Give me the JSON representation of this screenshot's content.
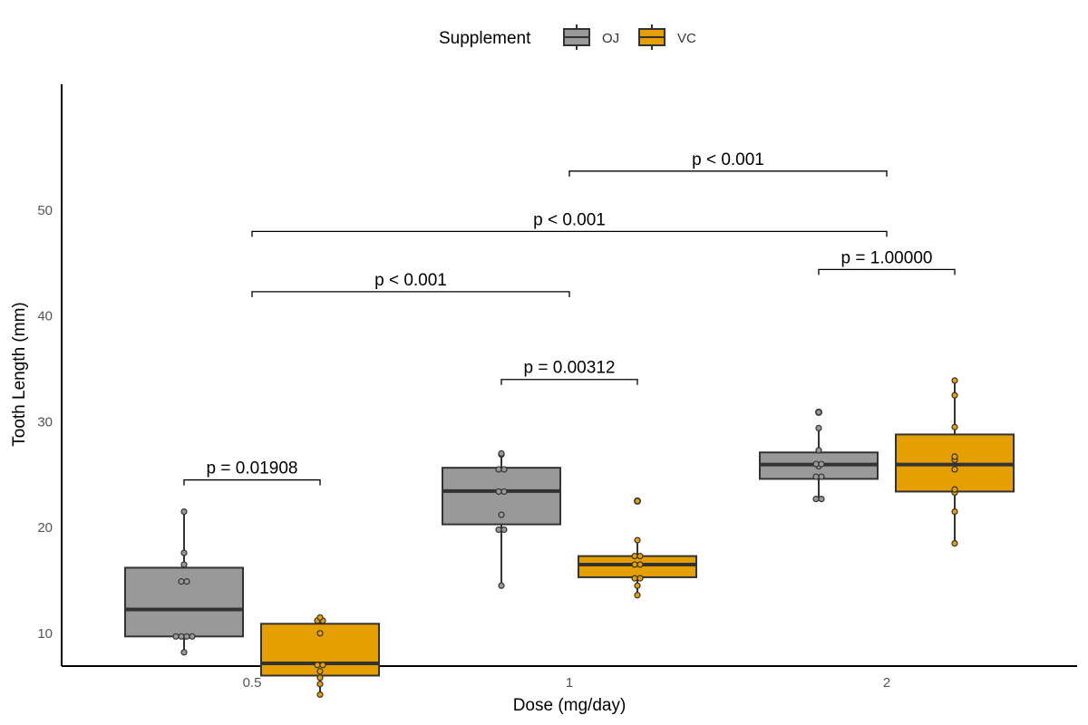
{
  "chart_data": {
    "type": "box",
    "xlabel": "Dose (mg/day)",
    "ylabel": "Tooth Length (mm)",
    "categories": [
      "0.5",
      "1",
      "2"
    ],
    "yticks": [
      10,
      20,
      30,
      40,
      50
    ],
    "ylim": [
      2,
      56
    ],
    "grid": false,
    "legend": {
      "title": "Supplement",
      "position": "top",
      "entries": [
        {
          "label": "OJ",
          "color": "#999999"
        },
        {
          "label": "VC",
          "color": "#E69F00"
        }
      ]
    },
    "series": [
      {
        "name": "OJ",
        "color": "#999999",
        "boxes": [
          {
            "category": "0.5",
            "min": 8.2,
            "q1": 9.7,
            "median": 12.25,
            "q3": 16.2,
            "max": 21.5,
            "outliers": [],
            "points": [
              8.2,
              9.7,
              9.7,
              9.7,
              9.7,
              14.9,
              14.9,
              16.5,
              17.6,
              21.5
            ]
          },
          {
            "category": "1",
            "min": 14.5,
            "q1": 20.3,
            "median": 23.45,
            "q3": 25.65,
            "max": 27.0,
            "outliers": [],
            "points": [
              14.5,
              19.8,
              19.8,
              21.2,
              23.4,
              23.4,
              25.5,
              25.5,
              26.9,
              27.0
            ]
          },
          {
            "category": "2",
            "min": 22.7,
            "q1": 24.6,
            "median": 25.95,
            "q3": 27.1,
            "max": 29.4,
            "outliers": [
              30.9
            ],
            "points": [
              22.7,
              22.7,
              24.8,
              24.8,
              25.8,
              26.0,
              26.0,
              27.3,
              29.4,
              30.9
            ]
          }
        ]
      },
      {
        "name": "VC",
        "color": "#E69F00",
        "boxes": [
          {
            "category": "0.5",
            "min": 4.2,
            "q1": 6.0,
            "median": 7.15,
            "q3": 10.9,
            "max": 11.5,
            "outliers": [],
            "points": [
              4.2,
              5.2,
              5.8,
              6.4,
              7.0,
              7.0,
              10.0,
              11.2,
              11.2,
              11.5
            ]
          },
          {
            "category": "1",
            "min": 13.6,
            "q1": 15.3,
            "median": 16.5,
            "q3": 17.3,
            "max": 18.8,
            "outliers": [
              22.5
            ],
            "points": [
              13.6,
              14.5,
              15.2,
              15.2,
              16.5,
              16.5,
              17.3,
              17.3,
              18.8,
              22.5
            ]
          },
          {
            "category": "2",
            "min": 18.5,
            "q1": 23.4,
            "median": 25.95,
            "q3": 28.8,
            "max": 33.9,
            "outliers": [],
            "points": [
              18.5,
              21.5,
              23.3,
              23.6,
              25.5,
              26.4,
              26.7,
              29.5,
              32.5,
              33.9
            ]
          }
        ]
      }
    ],
    "annotations": [
      {
        "label": "p = 0.01908",
        "y": 24.5,
        "x_from": "0.5 OJ",
        "x_to": "0.5 VC",
        "from": {
          "category": "0.5",
          "series": "OJ"
        },
        "to": {
          "category": "0.5",
          "series": "VC"
        }
      },
      {
        "label": "p = 0.00312",
        "y": 34.0,
        "x_from": "1 OJ",
        "x_to": "1 VC",
        "from": {
          "category": "1",
          "series": "OJ"
        },
        "to": {
          "category": "1",
          "series": "VC"
        }
      },
      {
        "label": "p = 1.00000",
        "y": 44.4,
        "x_from": "2 OJ",
        "x_to": "2 VC",
        "from": {
          "category": "2",
          "series": "OJ"
        },
        "to": {
          "category": "2",
          "series": "VC"
        }
      },
      {
        "label": "p < 0.001",
        "y": 42.3,
        "x_from": "0.5",
        "x_to": "1",
        "from": {
          "category": "0.5"
        },
        "to": {
          "category": "1"
        }
      },
      {
        "label": "p < 0.001",
        "y": 48.0,
        "x_from": "0.5",
        "x_to": "2",
        "from": {
          "category": "0.5"
        },
        "to": {
          "category": "2"
        }
      },
      {
        "label": "p < 0.001",
        "y": 53.7,
        "x_from": "1",
        "x_to": "2",
        "from": {
          "category": "1"
        },
        "to": {
          "category": "2"
        }
      }
    ]
  }
}
